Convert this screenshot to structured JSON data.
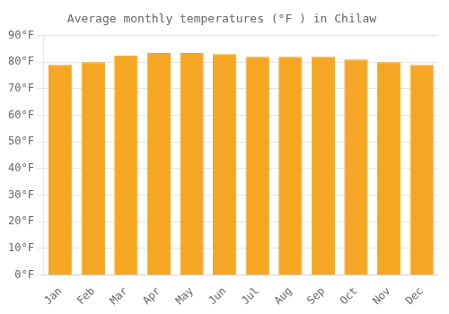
{
  "chart_data": {
    "type": "bar",
    "title": "Average monthly temperatures (°F ) in Chilaw",
    "categories": [
      "Jan",
      "Feb",
      "Mar",
      "Apr",
      "May",
      "Jun",
      "Jul",
      "Aug",
      "Sep",
      "Oct",
      "Nov",
      "Dec"
    ],
    "values": [
      79,
      80,
      82.5,
      83.5,
      83.5,
      83,
      82,
      82,
      82,
      81,
      80,
      79
    ],
    "color": "#F5A623",
    "ylim": [
      0,
      90
    ],
    "yticks": [
      {
        "value": 0,
        "label": "0°F"
      },
      {
        "value": 10,
        "label": "10°F"
      },
      {
        "value": 20,
        "label": "20°F"
      },
      {
        "value": 30,
        "label": "30°F"
      },
      {
        "value": 40,
        "label": "40°F"
      },
      {
        "value": 50,
        "label": "50°F"
      },
      {
        "value": 60,
        "label": "60°F"
      },
      {
        "value": 70,
        "label": "70°F"
      },
      {
        "value": 80,
        "label": "80°F"
      },
      {
        "value": 90,
        "label": "90°F"
      }
    ],
    "grid": true
  }
}
